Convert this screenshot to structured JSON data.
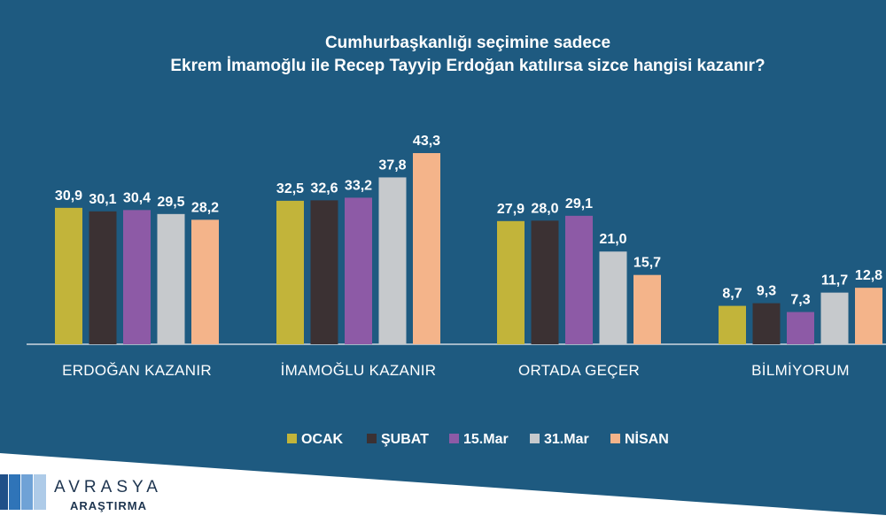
{
  "chart_data": {
    "type": "bar",
    "title_lines": [
      "Cumhurbaşkanlığı seçimine sadece",
      "Ekrem İmamoğlu ile Recep Tayyip Erdoğan katılırsa sizce hangisi kazanır?"
    ],
    "categories": [
      "ERDOĞAN KAZANIR",
      "İMAMOĞLU KAZANIR",
      "ORTADA GEÇER",
      "BİLMİYORUM"
    ],
    "series": [
      {
        "name": "OCAK",
        "color": "#c2b43a",
        "values": [
          30.9,
          32.5,
          27.9,
          8.7
        ],
        "labels": [
          "30,9",
          "32,5",
          "27,9",
          "8,7"
        ]
      },
      {
        "name": "ŞUBAT",
        "color": "#3b3133",
        "values": [
          30.1,
          32.6,
          28.0,
          9.3
        ],
        "labels": [
          "30,1",
          "32,6",
          "28,0",
          "9,3"
        ]
      },
      {
        "name": "15.Mar",
        "color": "#8d5aa6",
        "values": [
          30.4,
          33.2,
          29.1,
          7.3
        ],
        "labels": [
          "30,4",
          "33,2",
          "29,1",
          "7,3"
        ]
      },
      {
        "name": "31.Mar",
        "color": "#c6c9cc",
        "values": [
          29.5,
          37.8,
          21.0,
          11.7
        ],
        "labels": [
          "29,5",
          "37,8",
          "21,0",
          "11,7"
        ]
      },
      {
        "name": "NİSAN",
        "color": "#f4b48a",
        "values": [
          28.2,
          43.3,
          15.7,
          12.8
        ],
        "labels": [
          "28,2",
          "43,3",
          "15,7",
          "12,8"
        ]
      }
    ],
    "ylim": [
      0,
      50
    ],
    "grid": false,
    "legend_position": "bottom"
  },
  "colors": {
    "background": "#1e5a80",
    "baseline": "#cfd8e0"
  },
  "brand": {
    "name": "AVRASYA",
    "subtitle": "ARAŞTIRMA"
  }
}
